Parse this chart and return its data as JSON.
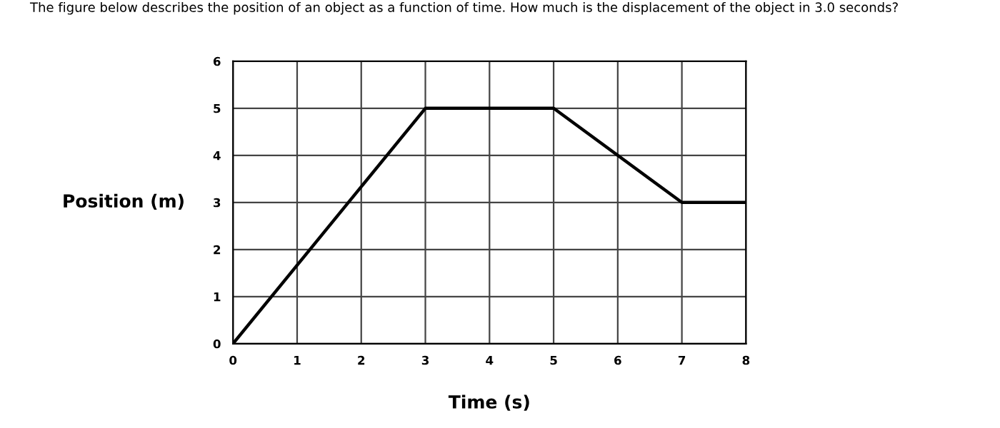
{
  "chart_data": {
    "type": "line",
    "title": "The figure below describes the position of an object as a function of time. How much is the displacement of the object in 3.0 seconds?",
    "xlabel": "Time (s)",
    "ylabel": "Position (m)",
    "x": [
      0,
      3,
      5,
      7,
      8
    ],
    "series": [
      {
        "color": "#000000",
        "values": [
          0,
          5,
          5,
          3,
          3
        ]
      }
    ],
    "xlim": [
      0,
      8
    ],
    "xticks": [
      0,
      1,
      2,
      3,
      4,
      5,
      6,
      7,
      8
    ],
    "ylim": [
      0,
      6
    ],
    "yticks": [
      0,
      1,
      2,
      3,
      4,
      5,
      6
    ],
    "grid": true,
    "legend": false,
    "marker": "none",
    "line_style": "solid"
  }
}
